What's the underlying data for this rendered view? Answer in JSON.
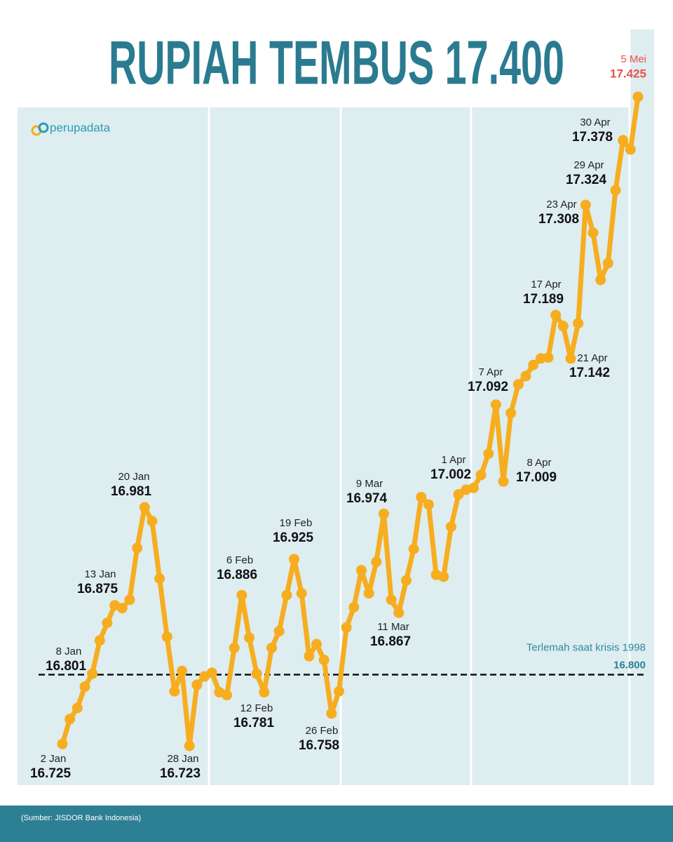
{
  "chart_data": {
    "type": "line",
    "title": "RUPIAH TEMBUS 17.400",
    "brand": "perupadata",
    "source": "(Sumber: JISDOR Bank Indonesia)",
    "color": "#f6ad1f",
    "categories": [
      "2 Jan",
      null,
      null,
      null,
      "8 Jan",
      null,
      null,
      "13 Jan",
      null,
      null,
      null,
      "20 Jan",
      null,
      null,
      null,
      null,
      null,
      "28 Jan",
      null,
      null,
      null,
      null,
      null,
      null,
      "6 Feb",
      null,
      null,
      "12 Feb",
      null,
      null,
      null,
      "19 Feb",
      null,
      null,
      null,
      null,
      "26 Feb",
      null,
      null,
      null,
      null,
      null,
      null,
      "9 Mar",
      null,
      "11 Mar",
      null,
      null,
      null,
      null,
      null,
      null,
      null,
      null,
      null,
      "1 Apr",
      null,
      null,
      "7 Apr",
      "8 Apr",
      null,
      null,
      null,
      null,
      null,
      null,
      "17 Apr",
      null,
      "21 Apr",
      null,
      "23 Apr",
      null,
      null,
      null,
      "29 Apr",
      "30 Apr",
      null,
      "5 Mei"
    ],
    "values": [
      16725,
      16752,
      16764,
      16787,
      16801,
      16837,
      16856,
      16875,
      16872,
      16881,
      16937,
      16981,
      16966,
      16904,
      16841,
      16782,
      16804,
      16723,
      16789,
      16798,
      16802,
      16781,
      16778,
      16829,
      16886,
      16840,
      16801,
      16781,
      16829,
      16847,
      16886,
      16925,
      16888,
      16820,
      16833,
      16816,
      16758,
      16782,
      16851,
      16873,
      16913,
      16888,
      16922,
      16974,
      16881,
      16867,
      16902,
      16936,
      16992,
      16984,
      16908,
      16906,
      16960,
      16995,
      17000,
      17002,
      17016,
      17039,
      17092,
      17009,
      17083,
      17114,
      17123,
      17135,
      17142,
      17143,
      17189,
      17177,
      17142,
      17180,
      17308,
      17278,
      17227,
      17245,
      17324,
      17378,
      17368,
      17425
    ],
    "value_labels": [
      "16.725",
      null,
      null,
      null,
      "16.801",
      null,
      null,
      "16.875",
      null,
      null,
      null,
      "16.981",
      null,
      null,
      null,
      null,
      null,
      "16.723",
      null,
      null,
      null,
      null,
      null,
      null,
      "16.886",
      null,
      null,
      "16.781",
      null,
      null,
      null,
      "16.925",
      null,
      null,
      null,
      null,
      "16.758",
      null,
      null,
      null,
      null,
      null,
      null,
      "16.974",
      null,
      "16.867",
      null,
      null,
      null,
      null,
      null,
      null,
      null,
      null,
      null,
      "17.002",
      null,
      null,
      "17.092",
      "17.009",
      null,
      null,
      null,
      null,
      null,
      null,
      "17.189",
      null,
      "17.142",
      null,
      "17.308",
      null,
      null,
      null,
      "17.324",
      "17.378",
      null,
      "17.425"
    ],
    "reference": {
      "value": 16800,
      "label": "Terlemah saat krisis 1998",
      "value_label": "16.800"
    }
  }
}
